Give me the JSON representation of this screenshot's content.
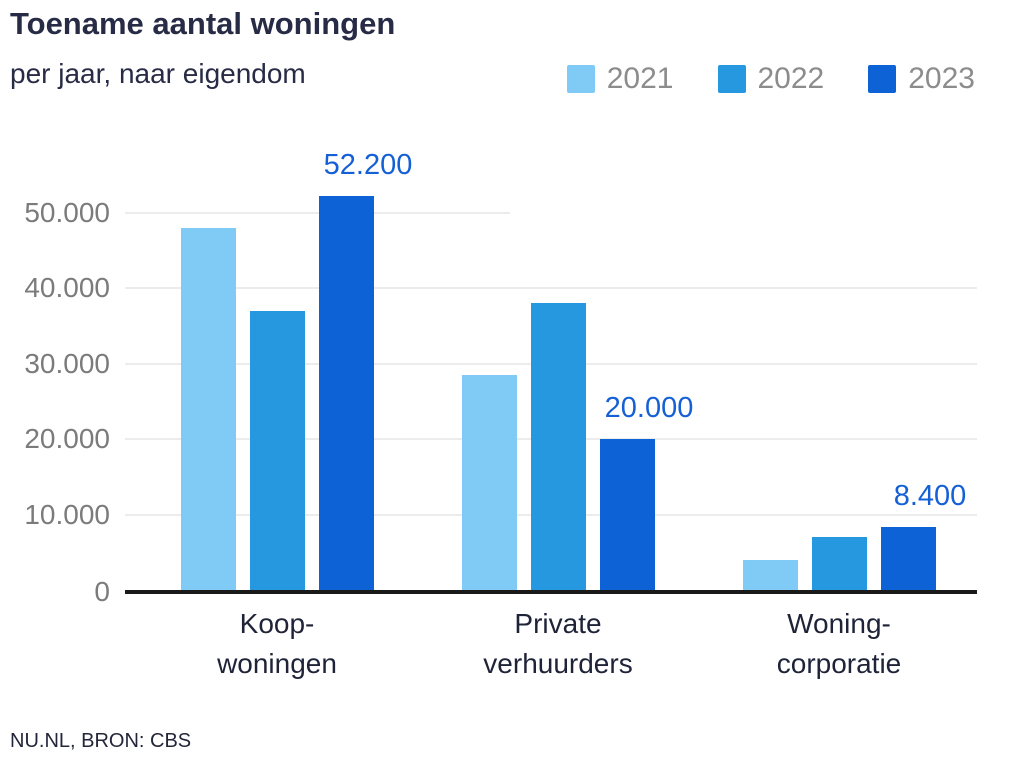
{
  "chart_data": {
    "type": "bar",
    "title": "Toename aantal woningen",
    "subtitle": "per jaar, naar eigendom",
    "source": "NU.NL, BRON: CBS",
    "grid": "horizontal",
    "legend_position": "top-right",
    "ylim": [
      0,
      58000
    ],
    "colors": {
      "label_blue": "#1560d6",
      "axis_black": "#1a1a1a",
      "grid_gray": "#ececec",
      "tick_gray": "#7b7b7b",
      "legend_gray": "#8c8c8c",
      "text_navy": "#272b45"
    },
    "categories": [
      {
        "lines": [
          "Koop-",
          "woningen"
        ]
      },
      {
        "lines": [
          "Private",
          "verhuurders"
        ]
      },
      {
        "lines": [
          "Woning-",
          "corporatie"
        ]
      }
    ],
    "series": [
      {
        "name": "2021",
        "color": "#7fcbf5",
        "values": [
          48000,
          28500,
          4000
        ]
      },
      {
        "name": "2022",
        "color": "#2598e0",
        "values": [
          37000,
          38000,
          7000
        ]
      },
      {
        "name": "2023",
        "color": "#0d63d6",
        "values": [
          52200,
          20000,
          8400
        ],
        "value_labels": [
          "52.200",
          "20.000",
          "8.400"
        ]
      }
    ],
    "y_ticks": [
      {
        "value": 0,
        "label": "0"
      },
      {
        "value": 10000,
        "label": "10.000"
      },
      {
        "value": 20000,
        "label": "20.000"
      },
      {
        "value": 30000,
        "label": "30.000"
      },
      {
        "value": 40000,
        "label": "40.000"
      },
      {
        "value": 50000,
        "label": "50.000",
        "short_grid": true
      }
    ]
  }
}
